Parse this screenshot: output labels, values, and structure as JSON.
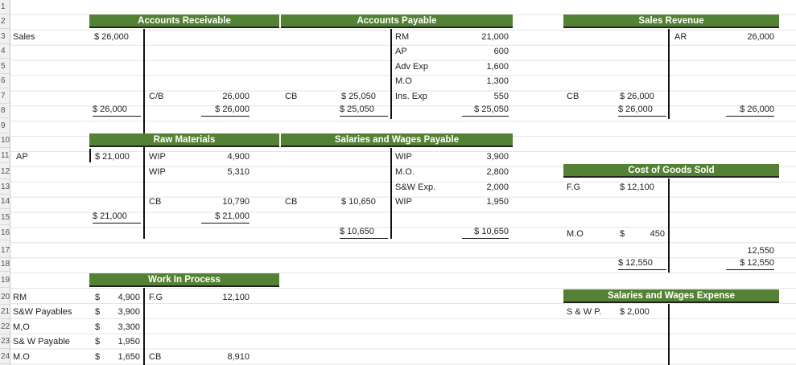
{
  "row_numbers": [
    "1",
    "2",
    "3",
    "4",
    "5",
    "6",
    "7",
    "8",
    "9",
    "10",
    "11",
    "12",
    "13",
    "14",
    "15",
    "16",
    "17",
    "18",
    "19",
    "20",
    "21",
    "22",
    "23",
    "24"
  ],
  "accounts_receivable": {
    "title": "Accounts Receivable",
    "r3_label": "Sales",
    "r3_debit": "$ 26,000",
    "r7_label": "C/B",
    "r7_credit": "26,000",
    "r8_debit": "$ 26,000",
    "r8_credit": "$ 26,000"
  },
  "accounts_payable": {
    "title": "Accounts Payable",
    "credits": [
      {
        "label": "RM",
        "amount": "21,000"
      },
      {
        "label": "AP",
        "amount": "600"
      },
      {
        "label": "Adv Exp",
        "amount": "1,600"
      },
      {
        "label": "M.O",
        "amount": "1,300"
      },
      {
        "label": "Ins. Exp",
        "amount": "550"
      }
    ],
    "cb_label": "CB",
    "cb_amount": "$ 25,050",
    "total_debit": "$ 25,050",
    "total_credit": "$ 25,050"
  },
  "sales_revenue": {
    "title": "Sales Revenue",
    "r3_label": "AR",
    "r3_credit": "26,000",
    "cb_label": "CB",
    "cb_amount": "$ 26,000",
    "total_debit": "$ 26,000",
    "total_credit": "$ 26,000"
  },
  "raw_materials": {
    "title": "Raw Materials",
    "r11_label": "AP",
    "r11_debit": "$ 21,000",
    "credits": [
      {
        "label": "WIP",
        "amount": "4,900"
      },
      {
        "label": "WIP",
        "amount": "5,310"
      }
    ],
    "cb_label": "CB",
    "cb_amount": "10,790",
    "total_debit": "$ 21,000",
    "total_credit": "$ 21,000"
  },
  "salaries_wages_payable": {
    "title": "Salaries and Wages Payable",
    "credits": [
      {
        "label": "WIP",
        "amount": "3,900"
      },
      {
        "label": "M.O.",
        "amount": "2,800"
      },
      {
        "label": "S&W Exp.",
        "amount": "2,000"
      },
      {
        "label": "WIP",
        "amount": "1,950"
      }
    ],
    "cb_label": "CB",
    "cb_amount": "$ 10,650",
    "total_debit": "$ 10,650",
    "total_credit": "$ 10,650"
  },
  "cost_of_goods_sold": {
    "title": "Cost of Goods Sold",
    "r14_label": "F.G",
    "r14_debit": "$ 12,100",
    "r16_label": "M.O",
    "r16_dollar": "$",
    "r16_debit": "450",
    "r17_credit": "12,550",
    "total_debit": "$ 12,550",
    "total_credit": "$ 12,550"
  },
  "work_in_process": {
    "title": "Work In Process",
    "debits": [
      {
        "label": "RM",
        "dollar": "$",
        "amount": "4,900"
      },
      {
        "label": "S&W Payables",
        "dollar": "$",
        "amount": "3,900"
      },
      {
        "label": "M,O",
        "dollar": "$",
        "amount": "3,300"
      },
      {
        "label": "S& W Payable",
        "dollar": "$",
        "amount": "1,950"
      },
      {
        "label": "M.O",
        "dollar": "$",
        "amount": "1,650"
      }
    ],
    "r20_credit_label": "F.G",
    "r20_credit": "12,100",
    "r24_credit_label": "CB",
    "r24_credit": "8,910"
  },
  "salaries_wages_expense": {
    "title": "Salaries and Wages Expense",
    "r20_label": "S & W P.",
    "r20_debit": "$ 2,000"
  }
}
